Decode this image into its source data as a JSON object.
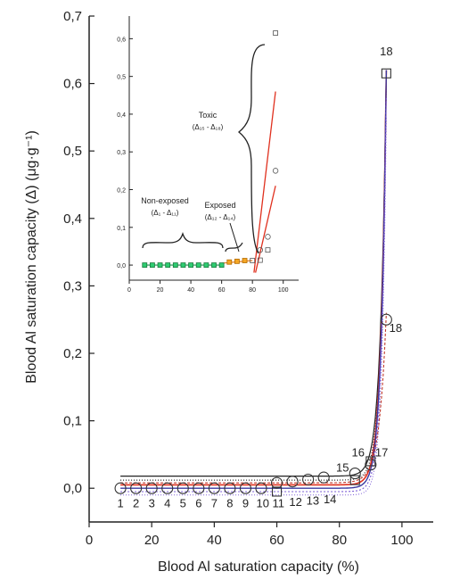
{
  "chart_data": [
    {
      "type": "scatter",
      "xlabel": "Blood Al saturation capacity (%)",
      "ylabel": "Blood Al saturation capacity (Δ) (μg·g⁻¹)",
      "xlim": [
        0,
        110
      ],
      "ylim": [
        -0.05,
        0.7
      ],
      "x_ticks": [
        0,
        20,
        40,
        60,
        80,
        100
      ],
      "y_ticks": [
        0.0,
        0.1,
        0.2,
        0.3,
        0.4,
        0.5,
        0.6,
        0.7
      ],
      "x_tick_labels": [
        "0",
        "20",
        "40",
        "60",
        "80",
        "100"
      ],
      "y_tick_labels": [
        "0,0",
        "0,1",
        "0,2",
        "0,3",
        "0,4",
        "0,5",
        "0,6",
        "0,7"
      ],
      "circles": {
        "x": [
          10,
          15,
          20,
          25,
          30,
          35,
          40,
          45,
          50,
          55,
          60,
          65,
          70,
          75,
          85,
          90,
          95
        ],
        "y": [
          0,
          0,
          0,
          0,
          0,
          0,
          0,
          0,
          0,
          0,
          0.008,
          0.01,
          0.013,
          0.016,
          0.022,
          0.035,
          0.25
        ]
      },
      "squares": {
        "x": [
          60,
          85,
          90,
          95
        ],
        "y": [
          -0.005,
          0.012,
          0.04,
          0.615
        ]
      },
      "point_labels": [
        {
          "text": "1",
          "x": 10,
          "y": -0.028
        },
        {
          "text": "2",
          "x": 15,
          "y": -0.028
        },
        {
          "text": "3",
          "x": 20,
          "y": -0.028
        },
        {
          "text": "4",
          "x": 25,
          "y": -0.028
        },
        {
          "text": "5",
          "x": 30,
          "y": -0.028
        },
        {
          "text": "6",
          "x": 35,
          "y": -0.028
        },
        {
          "text": "7",
          "x": 40,
          "y": -0.028
        },
        {
          "text": "8",
          "x": 45,
          "y": -0.028
        },
        {
          "text": "9",
          "x": 50,
          "y": -0.028
        },
        {
          "text": "10",
          "x": 55.5,
          "y": -0.028
        },
        {
          "text": "11",
          "x": 60.5,
          "y": -0.028
        },
        {
          "text": "12",
          "x": 66,
          "y": -0.026
        },
        {
          "text": "13",
          "x": 71.5,
          "y": -0.024
        },
        {
          "text": "14",
          "x": 77,
          "y": -0.022
        },
        {
          "text": "15",
          "x": 81,
          "y": 0.025
        },
        {
          "text": "16",
          "x": 86,
          "y": 0.047
        },
        {
          "text": "17",
          "x": 93.5,
          "y": 0.047
        },
        {
          "text": "18",
          "x": 95,
          "y": 0.642
        },
        {
          "text": "18",
          "x": 98,
          "y": 0.232
        }
      ],
      "envelope_colors": [
        "#222222",
        "#e0301e",
        "#3a3aa0",
        "#7b5bd6",
        "#c0392b"
      ]
    },
    {
      "type": "scatter",
      "inset": true,
      "xlim": [
        0,
        110
      ],
      "ylim": [
        -0.04,
        0.66
      ],
      "x_ticks": [
        0,
        20,
        40,
        60,
        80,
        100
      ],
      "y_ticks": [
        0.0,
        0.1,
        0.2,
        0.3,
        0.4,
        0.5,
        0.6
      ],
      "x_tick_labels": [
        "0",
        "20",
        "40",
        "60",
        "80",
        "100"
      ],
      "y_tick_labels": [
        "0,0",
        "0,1",
        "0,2",
        "0,3",
        "0,4",
        "0,5",
        "0,6"
      ],
      "non_exposed": {
        "x": [
          10,
          15,
          20,
          25,
          30,
          35,
          40,
          45,
          50,
          55,
          60
        ],
        "y": [
          0,
          0,
          0,
          0,
          0,
          0,
          0,
          0,
          0,
          0,
          0
        ]
      },
      "exposed": {
        "x": [
          65,
          70,
          75
        ],
        "y": [
          0.008,
          0.01,
          0.012
        ]
      },
      "toxic_squares": {
        "x": [
          80,
          85,
          90,
          95
        ],
        "y": [
          0.012,
          0.013,
          0.04,
          0.615
        ]
      },
      "toxic_circles": {
        "x": [
          85,
          90,
          95
        ],
        "y": [
          0.04,
          0.075,
          0.25
        ]
      },
      "annotations": {
        "toxic": "Toxic",
        "toxic_range": "(Δ₁₅ - Δ₁₈)",
        "non_exposed": "Non-exposed",
        "non_exposed_range": "(Δ₁ - Δ₁₁)",
        "exposed": "Exposed",
        "exposed_range": "(Δ₁₂ - Δ₁₄)"
      }
    }
  ]
}
